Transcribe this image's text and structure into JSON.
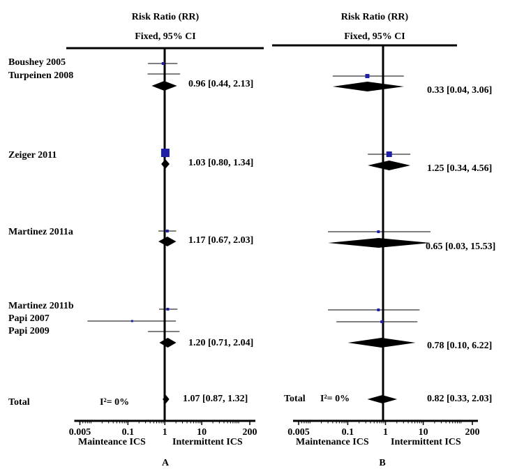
{
  "chart_data": [
    {
      "type": "forest",
      "panel_label": "A",
      "header_title": "Risk Ratio (RR)",
      "header_subtitle": "Fixed, 95% CI",
      "x_scale": "log",
      "xlim": [
        0.005,
        200
      ],
      "x_ticks": [
        0.005,
        0.1,
        1,
        10,
        200
      ],
      "x_tick_labels": [
        "0.005",
        "0.1",
        "1",
        "10",
        "200"
      ],
      "x_left_label": "Mainteance ICS",
      "x_right_label": "Intermittent ICS",
      "studies": [
        {
          "name": "Boushey 2005",
          "rr": 0.9,
          "ci": [
            0.35,
            2.2
          ],
          "weight": 1
        },
        {
          "name": "Turpeinen 2008",
          "rr": 1.0,
          "ci": [
            0.34,
            2.6
          ],
          "weight": 0
        },
        {
          "name": "Zeiger 2011",
          "rr": 1.03,
          "ci": [
            0.8,
            1.34
          ],
          "weight": 5
        },
        {
          "name": "Martinez 2011a",
          "rr": 1.17,
          "ci": [
            0.67,
            2.03
          ],
          "weight": 1
        },
        {
          "name": "Martinez 2011b",
          "rr": 1.2,
          "ci": [
            0.7,
            2.2
          ],
          "weight": 1
        },
        {
          "name": "Papi 2007",
          "rr": 0.13,
          "ci": [
            0.008,
            2.0
          ],
          "weight": 0.5
        },
        {
          "name": "Papi 2009",
          "rr": 1.0,
          "ci": [
            0.35,
            2.5
          ],
          "weight": 0
        }
      ],
      "subgroups": [
        {
          "label": "0.96 [0.44, 2.13]",
          "rr": 0.96,
          "ci": [
            0.44,
            2.13
          ]
        },
        {
          "label": "1.03 [0.80, 1.34]",
          "rr": 1.03,
          "ci": [
            0.8,
            1.34
          ]
        },
        {
          "label": "1.17 [0.67, 2.03]",
          "rr": 1.17,
          "ci": [
            0.67,
            2.03
          ]
        },
        {
          "label": "1.20 [0.71, 2.04]",
          "rr": 1.2,
          "ci": [
            0.71,
            2.04
          ]
        }
      ],
      "total": {
        "name": "Total",
        "heterogeneity": "I²= 0%",
        "label": "1.07 [0.87, 1.32]",
        "rr": 1.07,
        "ci": [
          0.87,
          1.32
        ]
      }
    },
    {
      "type": "forest",
      "panel_label": "B",
      "header_title": "Risk Ratio (RR)",
      "header_subtitle": "Fixed, 95% CI",
      "x_scale": "log",
      "xlim": [
        0.005,
        200
      ],
      "x_ticks": [
        0.005,
        0.1,
        1,
        10,
        200
      ],
      "x_tick_labels": [
        "0.005",
        "0.1",
        "1",
        "10",
        "200"
      ],
      "x_left_label": "Maintenance ICS",
      "x_right_label": "Intermittent ICS",
      "studies": [
        {
          "rr": 0.33,
          "ci": [
            0.04,
            3.06
          ],
          "weight": 2
        },
        {
          "rr": 1.25,
          "ci": [
            0.34,
            4.56
          ],
          "weight": 3
        },
        {
          "rr": 0.65,
          "ci": [
            0.03,
            15.53
          ],
          "weight": 1
        },
        {
          "rr": 0.65,
          "ci": [
            0.03,
            8.0
          ],
          "weight": 1
        },
        {
          "rr": 0.8,
          "ci": [
            0.05,
            7.0
          ],
          "weight": 1
        }
      ],
      "subgroups": [
        {
          "label": "0.33 [0.04, 3.06]",
          "rr": 0.33,
          "ci": [
            0.04,
            3.06
          ]
        },
        {
          "label": "1.25 [0.34, 4.56]",
          "rr": 1.25,
          "ci": [
            0.34,
            4.56
          ]
        },
        {
          "label": "0.65 [0.03, 15.53]",
          "rr": 0.65,
          "ci": [
            0.03,
            15.53
          ]
        },
        {
          "label": "0.78 [0.10, 6.22]",
          "rr": 0.78,
          "ci": [
            0.1,
            6.22
          ]
        }
      ],
      "total": {
        "name": "Total",
        "heterogeneity": "I²= 0%",
        "label": "0.82 [0.33, 2.03]",
        "rr": 0.82,
        "ci": [
          0.33,
          2.03
        ]
      }
    }
  ],
  "colors": {
    "marker": "#1f1fa8",
    "line": "#000000"
  }
}
